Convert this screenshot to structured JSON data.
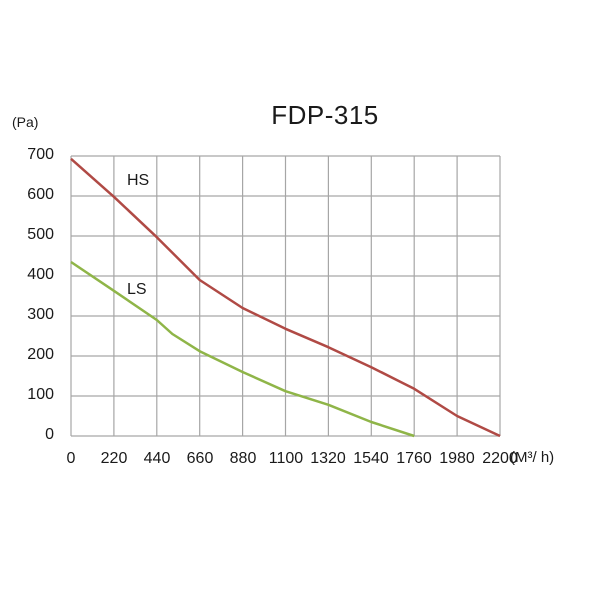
{
  "chart": {
    "title": "FDP-315",
    "y_unit": "(Pa)",
    "x_unit": "(M³/ h)",
    "y_ticks": [
      "700",
      "600",
      "500",
      "400",
      "300",
      "200",
      "100",
      "0"
    ],
    "x_ticks": [
      "0",
      "220",
      "440",
      "660",
      "880",
      "1100",
      "1320",
      "1540",
      "1760",
      "1980",
      "2200"
    ],
    "series_labels": {
      "hs": "HS",
      "ls": "LS"
    },
    "colors": {
      "hs": "#b04a45",
      "ls": "#8fb548",
      "grid": "#a6a6a6"
    }
  },
  "chart_data": {
    "type": "line",
    "title": "FDP-315",
    "xlabel": "(M³/ h)",
    "ylabel": "(Pa)",
    "xlim": [
      0,
      2200
    ],
    "ylim": [
      0,
      700
    ],
    "x_ticks": [
      0,
      220,
      440,
      660,
      880,
      1100,
      1320,
      1540,
      1760,
      1980,
      2200
    ],
    "y_ticks": [
      0,
      100,
      200,
      300,
      400,
      500,
      600,
      700
    ],
    "grid": true,
    "legend": "inline labels",
    "series": [
      {
        "name": "HS",
        "color": "#b04a45",
        "x": [
          0,
          220,
          440,
          660,
          880,
          1100,
          1320,
          1540,
          1760,
          1980,
          2200
        ],
        "y": [
          693,
          598,
          497,
          390,
          320,
          268,
          222,
          172,
          118,
          50,
          0
        ]
      },
      {
        "name": "LS",
        "color": "#8fb548",
        "x": [
          0,
          220,
          440,
          520,
          660,
          880,
          1100,
          1320,
          1540,
          1760
        ],
        "y": [
          435,
          363,
          290,
          255,
          212,
          160,
          112,
          78,
          35,
          0
        ]
      }
    ]
  }
}
